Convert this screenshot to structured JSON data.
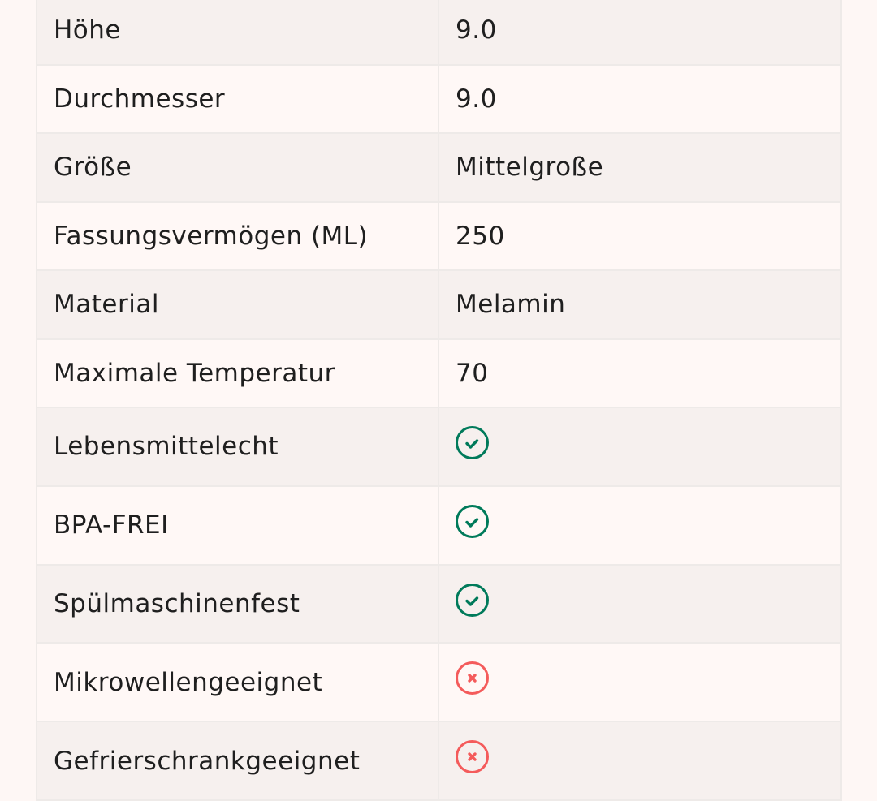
{
  "colors": {
    "check": "#007a5a",
    "cross": "#f45b5b"
  },
  "rows": [
    {
      "label": "Höhe",
      "value": "9.0"
    },
    {
      "label": "Durchmesser",
      "value": "9.0"
    },
    {
      "label": "Größe",
      "value": "Mittelgroße"
    },
    {
      "label": "Fassungsvermögen (ML)",
      "value": "250"
    },
    {
      "label": "Material",
      "value": "Melamin"
    },
    {
      "label": "Maximale Temperatur",
      "value": "70"
    },
    {
      "label": "Lebensmittelecht",
      "icon": "check-circle-icon"
    },
    {
      "label": "BPA-FREI",
      "icon": "check-circle-icon"
    },
    {
      "label": "Spülmaschinenfest",
      "icon": "check-circle-icon"
    },
    {
      "label": "Mikrowellengeeignet",
      "icon": "x-circle-icon"
    },
    {
      "label": "Gefrierschrankgeeignet",
      "icon": "x-circle-icon"
    }
  ]
}
